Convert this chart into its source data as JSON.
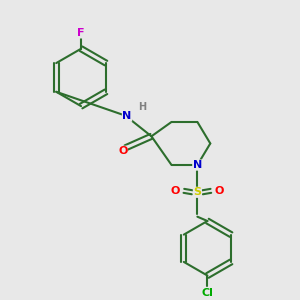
{
  "background_color": "#e8e8e8",
  "bond_color": "#2d6e2d",
  "atom_colors": {
    "N": "#0000cc",
    "O": "#ff0000",
    "S": "#cccc00",
    "F": "#cc00cc",
    "Cl": "#00aa00",
    "H": "#808080",
    "C": "#2d6e2d"
  },
  "font_size": 8
}
